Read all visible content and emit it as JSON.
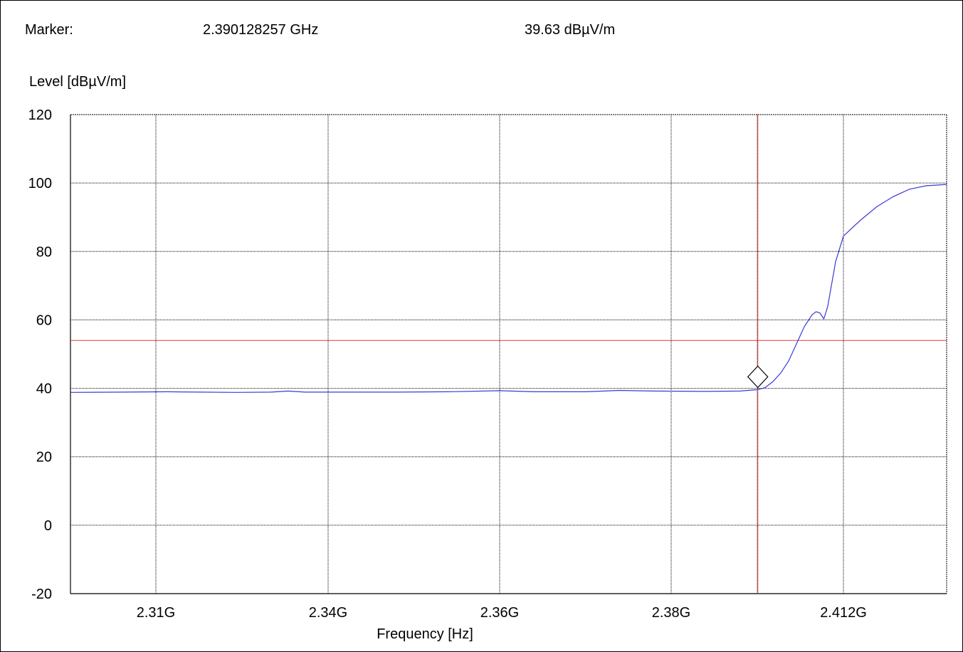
{
  "marker": {
    "label": "Marker:",
    "frequency_text": "2.390128257 GHz",
    "level_text": "39.63 dBµV/m"
  },
  "chart_data": {
    "type": "line",
    "ylabel": "Level [dBµV/m]",
    "xlabel": "Frequency [Hz]",
    "ylim": [
      -20,
      120
    ],
    "yticks": [
      -20,
      0,
      20,
      40,
      60,
      80,
      100,
      120
    ],
    "xticks": [
      {
        "value": 2.31,
        "label": "2.31G"
      },
      {
        "value": 2.34,
        "label": "2.34G"
      },
      {
        "value": 2.36,
        "label": "2.36G"
      },
      {
        "value": 2.38,
        "label": "2.38G"
      },
      {
        "value": 2.412,
        "label": "2.412G"
      }
    ],
    "grid": true,
    "limit_line": {
      "value": 54,
      "color": "#e03a3a"
    },
    "marker_line": {
      "x": 2.390128257,
      "y": 39.63,
      "color": "#e03a3a"
    },
    "series": [
      {
        "color": "#3a3ad6",
        "points": [
          [
            2.3,
            38.8
          ],
          [
            2.306,
            38.9
          ],
          [
            2.312,
            39.0
          ],
          [
            2.318,
            38.9
          ],
          [
            2.324,
            38.8
          ],
          [
            2.33,
            38.9
          ],
          [
            2.333,
            39.2
          ],
          [
            2.336,
            38.9
          ],
          [
            2.342,
            38.9
          ],
          [
            2.348,
            38.9
          ],
          [
            2.354,
            39.0
          ],
          [
            2.36,
            39.3
          ],
          [
            2.364,
            39.0
          ],
          [
            2.37,
            39.0
          ],
          [
            2.374,
            39.4
          ],
          [
            2.378,
            39.2
          ],
          [
            2.384,
            39.1
          ],
          [
            2.388,
            39.2
          ],
          [
            2.39,
            39.6
          ],
          [
            2.392,
            40.2
          ],
          [
            2.394,
            42.0
          ],
          [
            2.396,
            44.5
          ],
          [
            2.398,
            48.0
          ],
          [
            2.4,
            53.0
          ],
          [
            2.402,
            58.0
          ],
          [
            2.404,
            61.5
          ],
          [
            2.405,
            62.4
          ],
          [
            2.406,
            62.0
          ],
          [
            2.407,
            60.3
          ],
          [
            2.408,
            64.0
          ],
          [
            2.41,
            77.0
          ],
          [
            2.412,
            84.5
          ],
          [
            2.414,
            89.0
          ],
          [
            2.416,
            93.0
          ],
          [
            2.418,
            96.0
          ],
          [
            2.42,
            98.2
          ],
          [
            2.422,
            99.2
          ],
          [
            2.4245,
            99.6
          ]
        ]
      }
    ]
  }
}
